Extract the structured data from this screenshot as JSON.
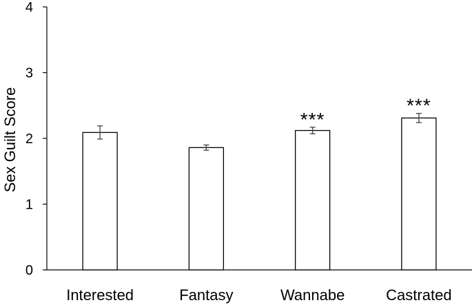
{
  "chart_data": {
    "type": "bar",
    "title": "",
    "xlabel": "",
    "ylabel": "Sex Guilt Score",
    "ylim": [
      0,
      4
    ],
    "yticks": [
      "0",
      "1",
      "2",
      "3",
      "4"
    ],
    "categories": [
      "Interested",
      "Fantasy",
      "Wannabe",
      "Castrated"
    ],
    "values": [
      2.09,
      1.86,
      2.12,
      2.31
    ],
    "errors": [
      0.1,
      0.04,
      0.05,
      0.07
    ],
    "annotations": [
      "",
      "",
      "***",
      "***"
    ],
    "grid": false,
    "legend": "none",
    "colors": {
      "bar_fill": "#ffffff",
      "bar_stroke": "#000000",
      "error_bar": "#404040"
    }
  }
}
